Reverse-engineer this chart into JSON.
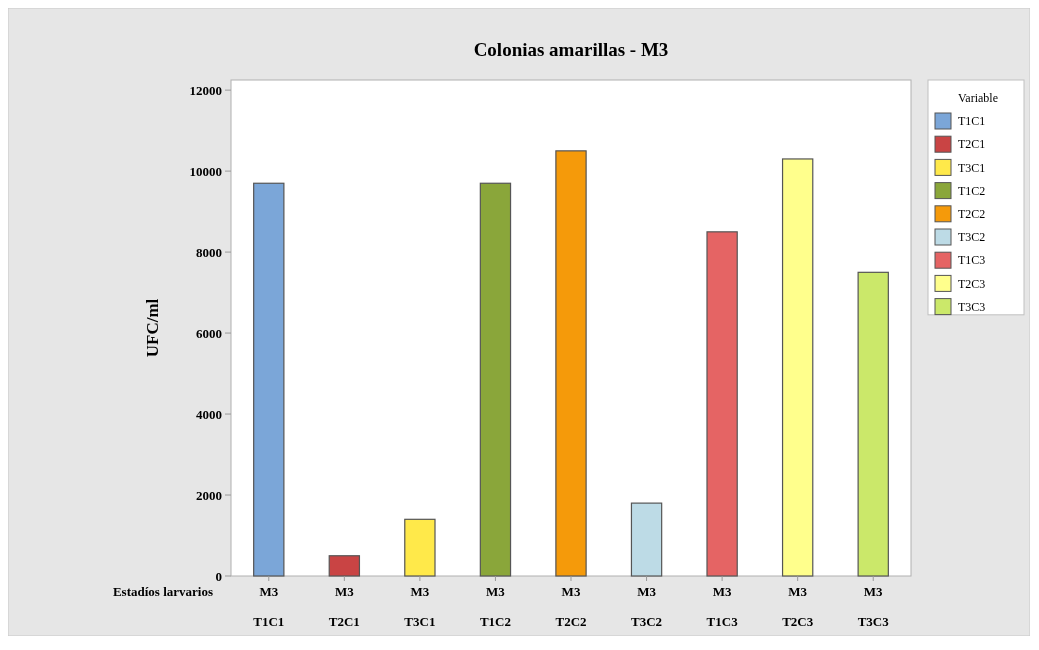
{
  "chart_data": {
    "type": "bar",
    "stacked": true,
    "title": "Colonias amarillas - M3",
    "ylabel": "UFC/ml",
    "xlabel": "Estadíos larvarios",
    "legend_title": "Variable",
    "legend": "right",
    "categories": [
      "M3 T1C1",
      "M3 T2C1",
      "M3 T3C1",
      "M3 T1C2",
      "M3 T2C2",
      "M3 T3C2",
      "M3 T1C3",
      "M3 T2C3",
      "M3 T3C3"
    ],
    "series": [
      {
        "name": "T1C1",
        "color": "#7ba6d8",
        "values": [
          9700,
          null,
          null,
          null,
          null,
          null,
          null,
          null,
          null
        ]
      },
      {
        "name": "T2C1",
        "color": "#c94444",
        "values": [
          null,
          500,
          null,
          null,
          null,
          null,
          null,
          null,
          null
        ]
      },
      {
        "name": "T3C1",
        "color": "#ffe94a",
        "values": [
          null,
          null,
          1400,
          null,
          null,
          null,
          null,
          null,
          null
        ]
      },
      {
        "name": "T1C2",
        "color": "#8aa63a",
        "values": [
          null,
          null,
          null,
          9700,
          null,
          null,
          null,
          null,
          null
        ]
      },
      {
        "name": "T2C2",
        "color": "#f59a0a",
        "values": [
          null,
          null,
          null,
          null,
          10500,
          null,
          null,
          null,
          null
        ]
      },
      {
        "name": "T3C2",
        "color": "#bddbe6",
        "values": [
          null,
          null,
          null,
          null,
          null,
          1800,
          null,
          null,
          null
        ]
      },
      {
        "name": "T1C3",
        "color": "#e56464",
        "values": [
          null,
          null,
          null,
          null,
          null,
          null,
          8500,
          null,
          null
        ]
      },
      {
        "name": "T2C3",
        "color": "#ffff8c",
        "values": [
          null,
          null,
          null,
          null,
          null,
          null,
          null,
          10300,
          null
        ]
      },
      {
        "name": "T3C3",
        "color": "#cbe86a",
        "values": [
          null,
          null,
          null,
          null,
          null,
          null,
          null,
          null,
          7500
        ]
      }
    ],
    "ylim": [
      0,
      12250
    ],
    "yticks": [
      0,
      2000,
      4000,
      6000,
      8000,
      10000,
      12000
    ]
  }
}
